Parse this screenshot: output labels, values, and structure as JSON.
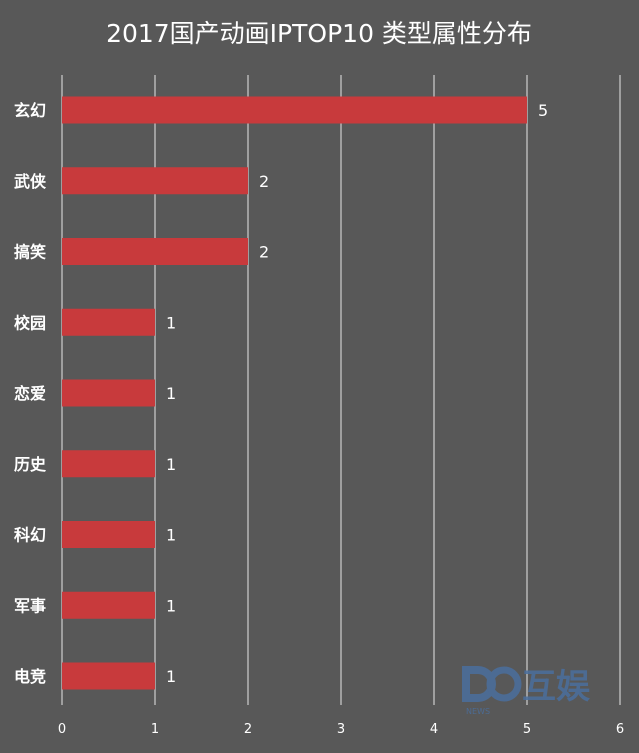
{
  "chart_data": {
    "type": "bar",
    "orientation": "horizontal",
    "title": "2017国产动画IPTOP10 类型属性分布",
    "categories": [
      "玄幻",
      "武侠",
      "搞笑",
      "校园",
      "恋爱",
      "历史",
      "科幻",
      "军事",
      "电竞"
    ],
    "values": [
      5,
      2,
      2,
      1,
      1,
      1,
      1,
      1,
      1
    ],
    "xlim": [
      0,
      6
    ],
    "xticks": [
      0,
      1,
      2,
      3,
      4,
      5,
      6
    ],
    "grid": true,
    "legend": "none",
    "bar_color": "#c83a3c",
    "background_color": "#585858"
  },
  "watermark": {
    "logo_letters": "D",
    "brand": "互娱",
    "sub": "NEWS"
  }
}
